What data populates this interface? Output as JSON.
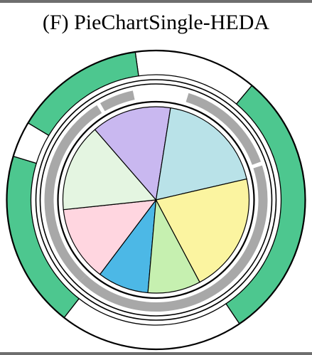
{
  "chart_data": {
    "type": "pie",
    "title": "(F) PieChartSingle-HEDA",
    "slices": [
      {
        "start_deg": 95,
        "end_deg": 127,
        "color": "#4cb8e6"
      },
      {
        "start_deg": 127,
        "end_deg": 174,
        "color": "#ffd6e0"
      },
      {
        "start_deg": 174,
        "end_deg": 229,
        "color": "#e4f5e1"
      },
      {
        "start_deg": 229,
        "end_deg": 279,
        "color": "#c9b8f0"
      },
      {
        "start_deg": 279,
        "end_deg": 347,
        "color": "#b9e2e8"
      },
      {
        "start_deg": 347,
        "end_deg": 422,
        "color": "#fbf4a0"
      },
      {
        "start_deg": 422,
        "end_deg": 455,
        "color": "#c6f0b0"
      }
    ],
    "gray_ring": [
      {
        "start_deg": 133,
        "end_deg": 238,
        "color": "#a8a8a8"
      },
      {
        "start_deg": 240,
        "end_deg": 258,
        "color": "#a8a8a8"
      },
      {
        "start_deg": 287,
        "end_deg": 340,
        "color": "#a8a8a8"
      },
      {
        "start_deg": 342,
        "end_deg": 493,
        "color": "#a8a8a8"
      }
    ],
    "outer_ring": [
      {
        "start_deg": 262,
        "end_deg": 310,
        "color": "#ffffff"
      },
      {
        "start_deg": 310,
        "end_deg": 416,
        "color": "#4dc78f"
      },
      {
        "start_deg": 416,
        "end_deg": 488,
        "color": "#ffffff"
      },
      {
        "start_deg": 488,
        "end_deg": 557,
        "color": "#4dc78f"
      },
      {
        "start_deg": 557,
        "end_deg": 571,
        "color": "#ffffff"
      },
      {
        "start_deg": 571,
        "end_deg": 622,
        "color": "#4dc78f"
      }
    ]
  }
}
